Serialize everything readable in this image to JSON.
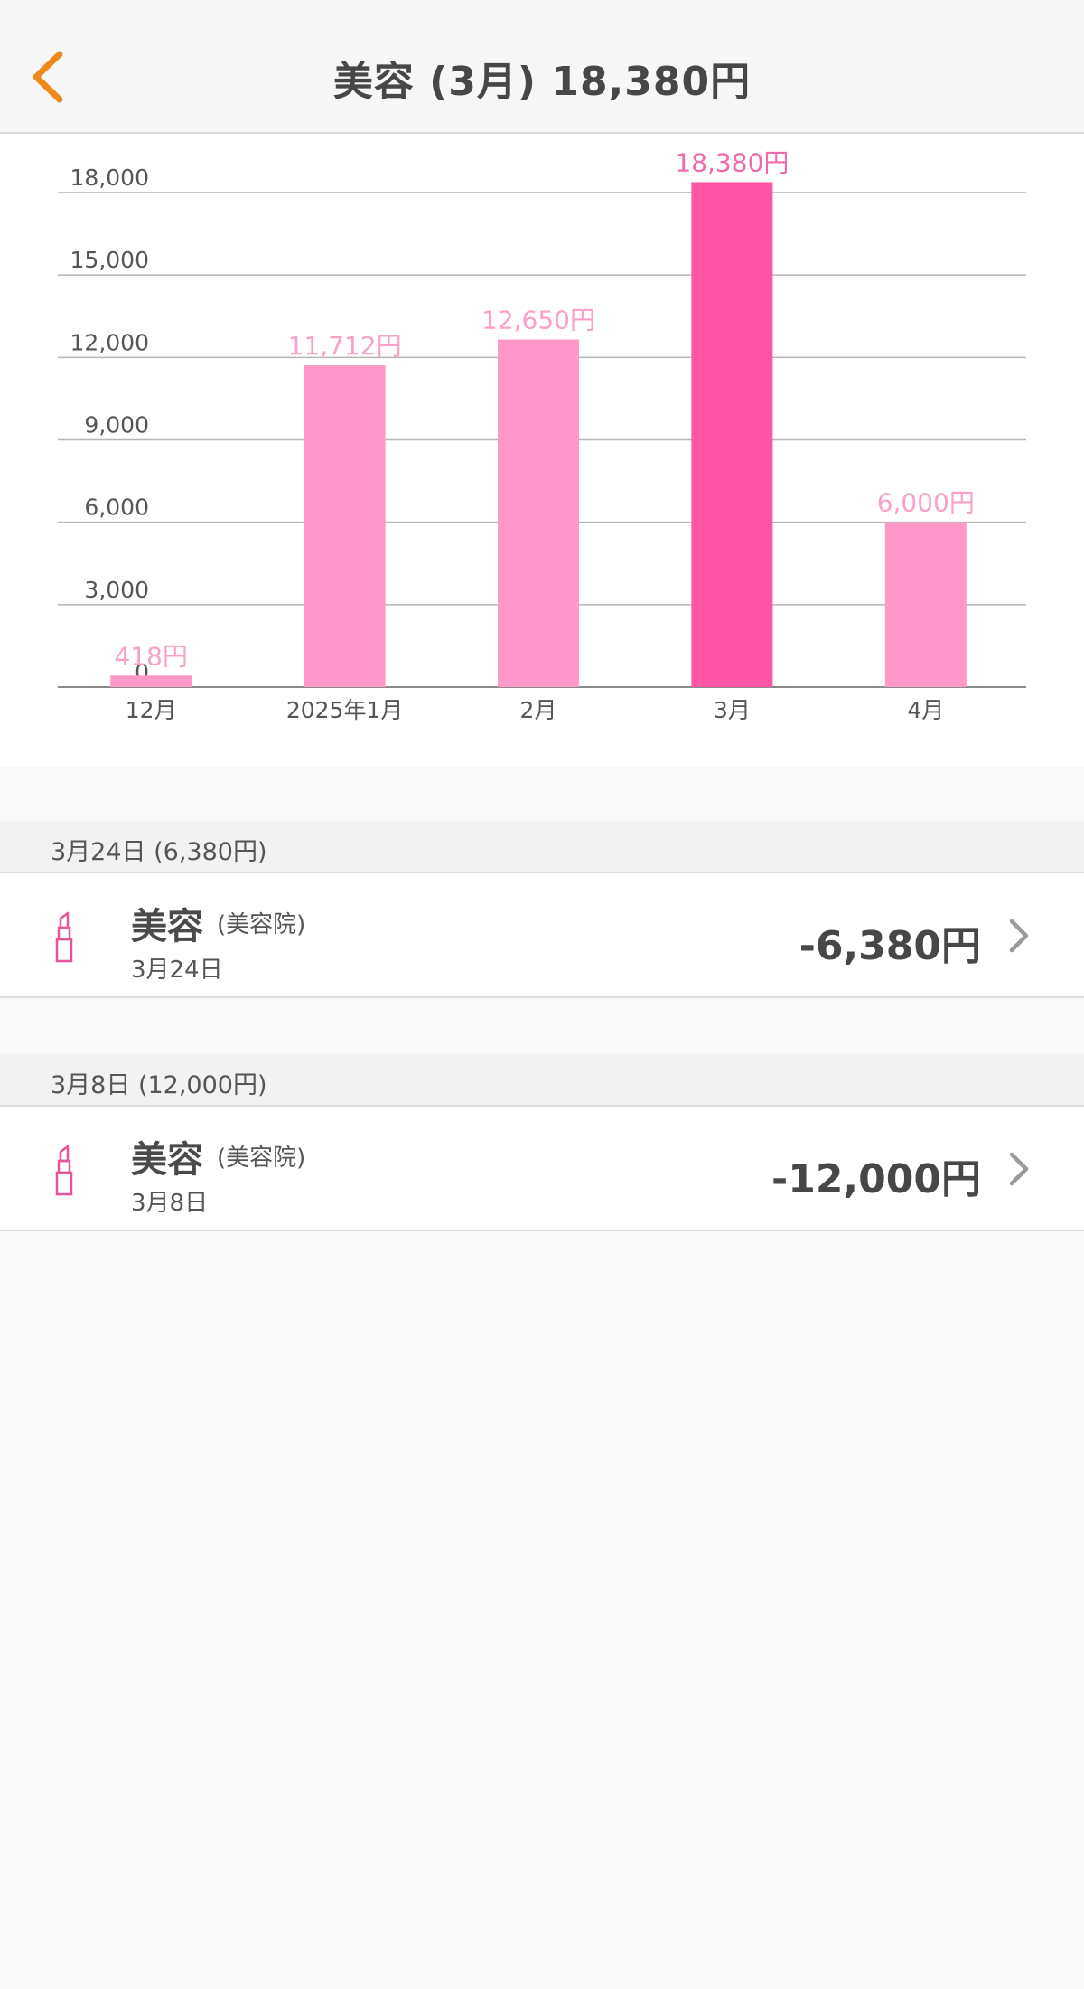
{
  "header": {
    "title": "美容 (3月) 18,380円",
    "back_icon": "chevron-left-icon",
    "accent_color": "#ee8a1b"
  },
  "chart_data": {
    "type": "bar",
    "categories": [
      "12月",
      "2025年1月",
      "2月",
      "3月",
      "4月"
    ],
    "values": [
      418,
      11712,
      12650,
      18380,
      6000
    ],
    "value_labels": [
      "418円",
      "11,712円",
      "12,650円",
      "18,380円",
      "6,000円"
    ],
    "selected_index": 3,
    "yticks": [
      0,
      3000,
      6000,
      9000,
      12000,
      15000,
      18000
    ],
    "ytick_labels": [
      "0",
      "3,000",
      "6,000",
      "9,000",
      "12,000",
      "15,000",
      "18,000"
    ],
    "ylim": [
      0,
      18000
    ],
    "grid": true,
    "colors": {
      "bar": "#fd98c8",
      "bar_selected": "#ff55a4",
      "label": "#f9a1cb",
      "label_selected": "#f06aae"
    }
  },
  "sections": [
    {
      "header": "3月24日 (6,380円)",
      "items": [
        {
          "icon": "lipstick-icon",
          "category": "美容",
          "subcategory": "(美容院)",
          "date": "3月24日",
          "amount": "-6,380円"
        }
      ]
    },
    {
      "header": "3月8日 (12,000円)",
      "items": [
        {
          "icon": "lipstick-icon",
          "category": "美容",
          "subcategory": "(美容院)",
          "date": "3月8日",
          "amount": "-12,000円"
        }
      ]
    }
  ]
}
